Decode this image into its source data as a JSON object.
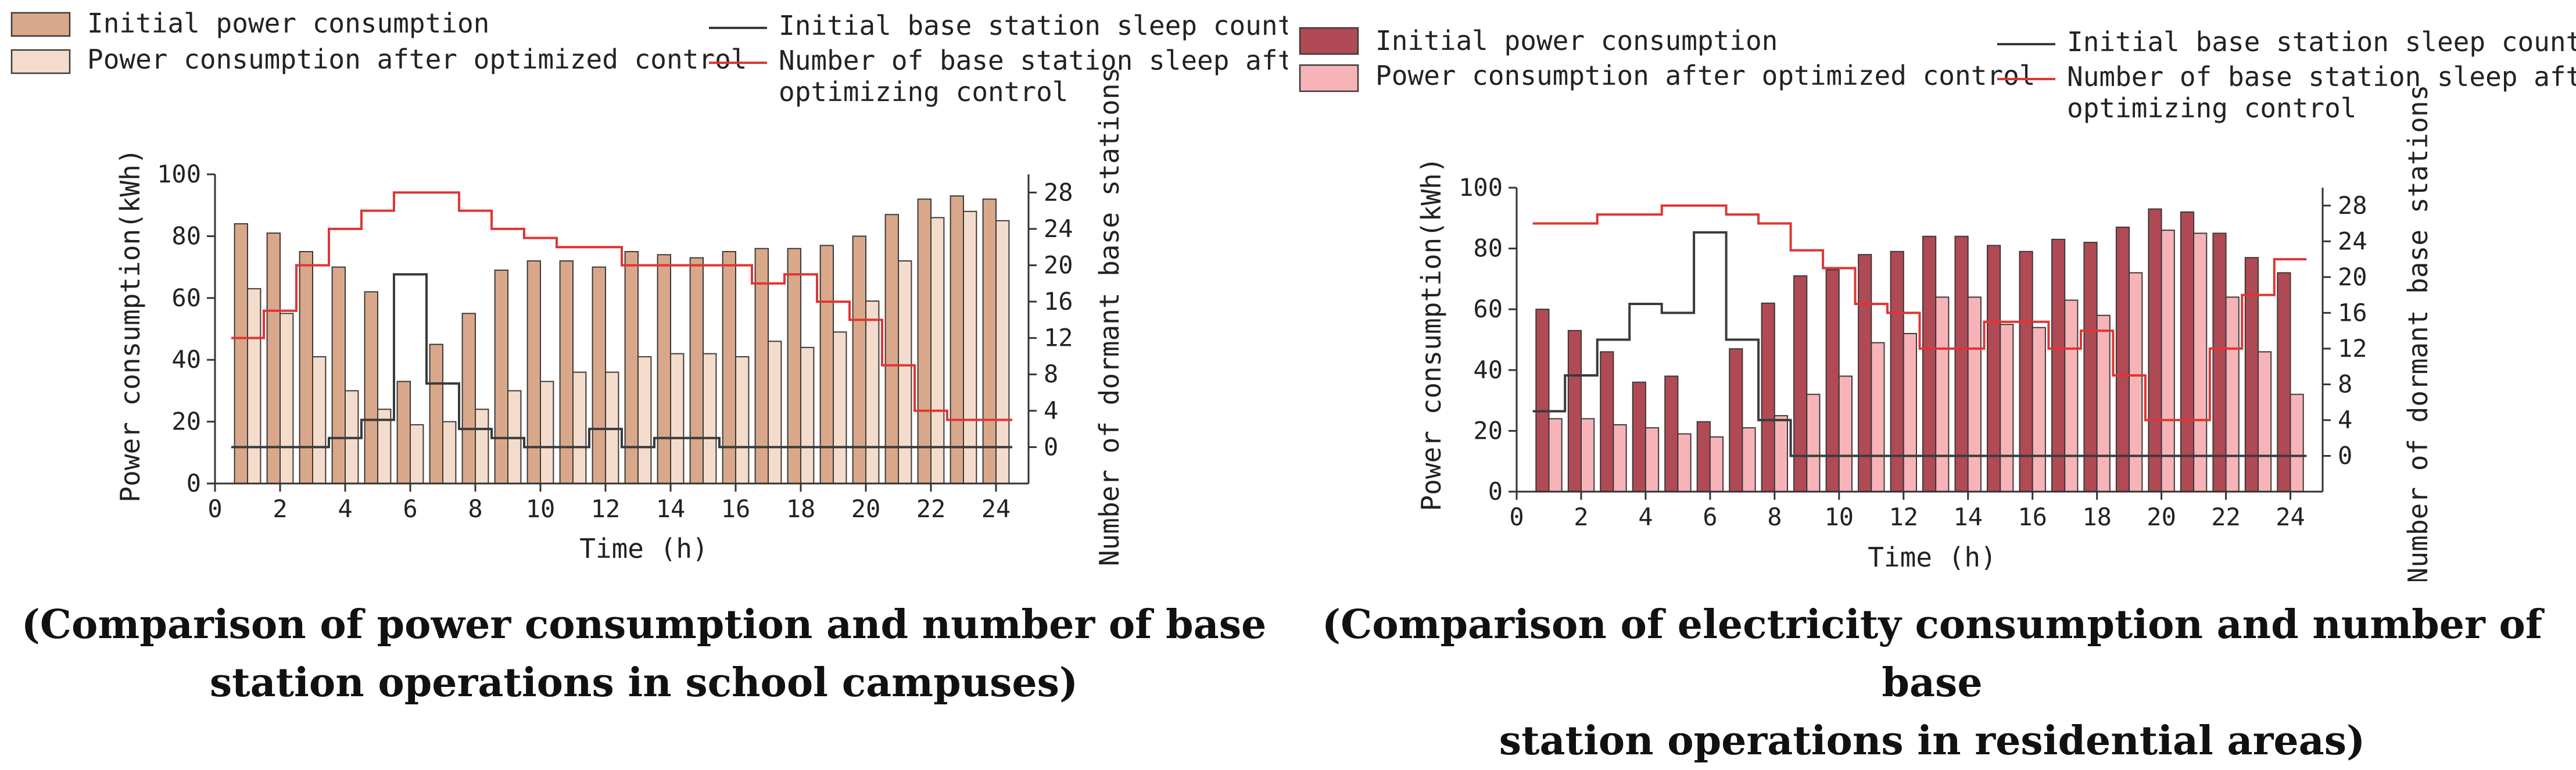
{
  "chart_data": [
    {
      "type": "bar+line",
      "legend": {
        "bar1": "Initial power consumption",
        "bar2": "Power consumption after optimized control",
        "line1": "Initial base station sleep count",
        "line2_l1": "Number of base station sleep after",
        "line2_l2": "optimizing control"
      },
      "xlabel": "Time (h)",
      "ylabel": "Power consumption(kWh)",
      "y2label": "Number of dormant base stations",
      "xlim": [
        0,
        25
      ],
      "ylim": [
        0,
        100
      ],
      "y2lim": [
        -4,
        30
      ],
      "x_ticks": [
        0,
        2,
        4,
        6,
        8,
        10,
        12,
        14,
        16,
        18,
        20,
        22,
        24
      ],
      "y_ticks": [
        0,
        20,
        40,
        60,
        80,
        100
      ],
      "y2_ticks": [
        0,
        4,
        8,
        12,
        16,
        20,
        24,
        28
      ],
      "categories": [
        1,
        2,
        3,
        4,
        5,
        6,
        7,
        8,
        9,
        10,
        11,
        12,
        13,
        14,
        15,
        16,
        17,
        18,
        19,
        20,
        21,
        22,
        23,
        24
      ],
      "series": [
        {
          "name": "Initial power consumption",
          "values": [
            84,
            81,
            75,
            70,
            62,
            33,
            45,
            55,
            69,
            72,
            72,
            70,
            75,
            74,
            73,
            75,
            76,
            76,
            77,
            80,
            87,
            92,
            93,
            92
          ]
        },
        {
          "name": "Power consumption after optimized control",
          "values": [
            63,
            55,
            41,
            30,
            24,
            19,
            20,
            24,
            30,
            33,
            36,
            36,
            41,
            42,
            42,
            41,
            46,
            44,
            49,
            59,
            72,
            86,
            88,
            85
          ]
        },
        {
          "name": "Initial base station sleep count",
          "values": [
            0,
            0,
            0,
            1,
            3,
            19,
            7,
            2,
            1,
            0,
            0,
            2,
            0,
            1,
            1,
            0,
            0,
            0,
            0,
            0,
            0,
            0,
            0,
            0
          ]
        },
        {
          "name": "Number of base station sleep after optimizing control",
          "values": [
            12,
            15,
            20,
            24,
            26,
            28,
            28,
            26,
            24,
            23,
            22,
            22,
            20,
            20,
            20,
            20,
            18,
            19,
            16,
            14,
            9,
            4,
            3,
            3
          ]
        }
      ],
      "colors": {
        "bar1": "#d9a88a",
        "bar1_edge": "#3a3a3a",
        "bar2": "#f4dccc",
        "bar2_edge": "#3a3a3a",
        "line1": "#3a3a3a",
        "line2": "#e03535"
      },
      "caption_l1": "(Comparison of power consumption and number of base",
      "caption_l2": "station operations in school campuses)"
    },
    {
      "type": "bar+line",
      "legend": {
        "bar1": "Initial power consumption",
        "bar2": "Power consumption after optimized control",
        "line1": "Initial base station sleep count",
        "line2_l1": "Number of base station sleep after",
        "line2_l2": "optimizing control"
      },
      "xlabel": "Time (h)",
      "ylabel": "Power consumption(kWh)",
      "y2label": "Number of dormant base stations",
      "xlim": [
        0,
        25
      ],
      "ylim": [
        0,
        100
      ],
      "y2lim": [
        -4,
        30
      ],
      "x_ticks": [
        0,
        2,
        4,
        6,
        8,
        10,
        12,
        14,
        16,
        18,
        20,
        22,
        24
      ],
      "y_ticks": [
        0,
        20,
        40,
        60,
        80,
        100
      ],
      "y2_ticks": [
        0,
        4,
        8,
        12,
        16,
        20,
        24,
        28
      ],
      "categories": [
        1,
        2,
        3,
        4,
        5,
        6,
        7,
        8,
        9,
        10,
        11,
        12,
        13,
        14,
        15,
        16,
        17,
        18,
        19,
        20,
        21,
        22,
        23,
        24
      ],
      "series": [
        {
          "name": "Initial power consumption",
          "values": [
            60,
            53,
            46,
            36,
            38,
            23,
            47,
            62,
            71,
            73,
            78,
            79,
            84,
            84,
            81,
            79,
            83,
            82,
            87,
            93,
            92,
            85,
            77,
            72
          ]
        },
        {
          "name": "Power consumption after optimized control",
          "values": [
            24,
            24,
            22,
            21,
            19,
            18,
            21,
            25,
            32,
            38,
            49,
            52,
            64,
            64,
            55,
            54,
            63,
            58,
            72,
            86,
            85,
            64,
            46,
            32
          ]
        },
        {
          "name": "Initial base station sleep count",
          "values": [
            5,
            9,
            13,
            17,
            16,
            25,
            13,
            4,
            0,
            0,
            0,
            0,
            0,
            0,
            0,
            0,
            0,
            0,
            0,
            0,
            0,
            0,
            0,
            0
          ]
        },
        {
          "name": "Number of base station sleep after optimizing control",
          "values": [
            26,
            26,
            27,
            27,
            28,
            28,
            27,
            26,
            23,
            21,
            17,
            16,
            12,
            12,
            15,
            15,
            12,
            14,
            9,
            4,
            4,
            12,
            18,
            22
          ]
        }
      ],
      "colors": {
        "bar1": "#b04a55",
        "bar1_edge": "#3a3a3a",
        "bar2": "#f7b4b8",
        "bar2_edge": "#3a3a3a",
        "line1": "#3a3a3a",
        "line2": "#e03535"
      },
      "caption_l1": "(Comparison of electricity consumption and number of base",
      "caption_l2": "station operations in residential areas)"
    }
  ]
}
